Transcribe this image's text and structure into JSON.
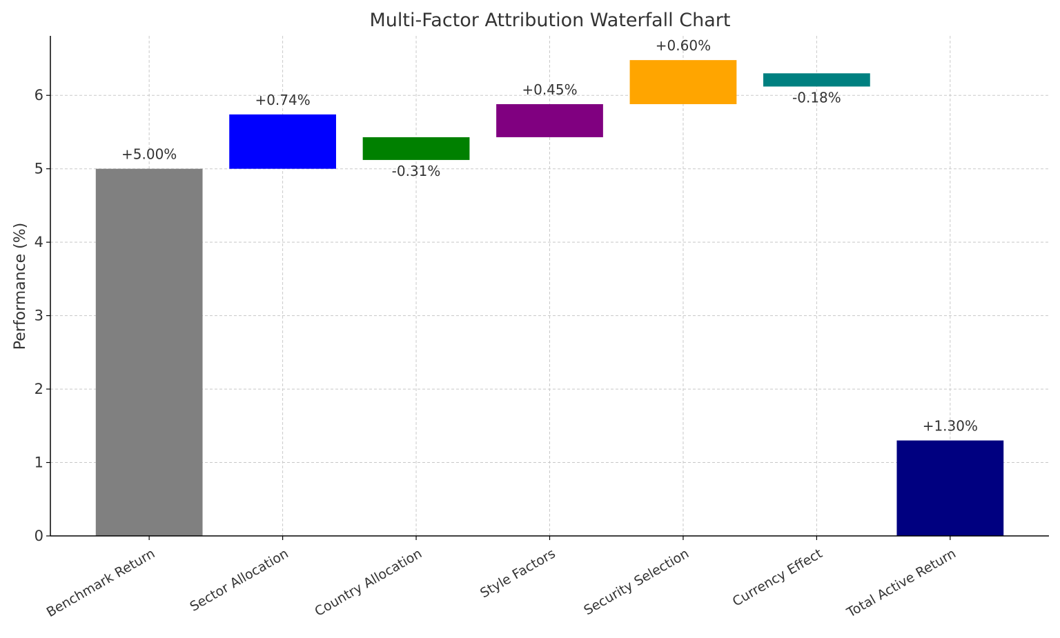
{
  "chart_data": {
    "type": "bar",
    "subtype": "waterfall",
    "title": "Multi-Factor Attribution Waterfall Chart",
    "xlabel": "",
    "ylabel": "Performance (%)",
    "ylim": [
      0,
      6.81
    ],
    "yticks": [
      0,
      1,
      2,
      3,
      4,
      5,
      6
    ],
    "grid": true,
    "categories": [
      "Benchmark Return",
      "Sector Allocation",
      "Country Allocation",
      "Style Factors",
      "Security Selection",
      "Currency Effect",
      "Total Active Return"
    ],
    "bars": [
      {
        "bottom": 0,
        "top": 5.0,
        "value": 5.0,
        "label": "+5.00%",
        "color": "#808080"
      },
      {
        "bottom": 5.0,
        "top": 5.74,
        "value": 0.74,
        "label": "+0.74%",
        "color": "#0000ff"
      },
      {
        "bottom": 5.12,
        "top": 5.43,
        "value": -0.31,
        "label": "-0.31%",
        "color": "#008000"
      },
      {
        "bottom": 5.43,
        "top": 5.88,
        "value": 0.45,
        "label": "+0.45%",
        "color": "#800080"
      },
      {
        "bottom": 5.88,
        "top": 6.48,
        "value": 0.6,
        "label": "+0.60%",
        "color": "#ffa500"
      },
      {
        "bottom": 6.12,
        "top": 6.3,
        "value": -0.18,
        "label": "-0.18%",
        "color": "#008080"
      },
      {
        "bottom": 0,
        "top": 1.3,
        "value": 1.3,
        "label": "+1.30%",
        "color": "#000080"
      }
    ]
  }
}
